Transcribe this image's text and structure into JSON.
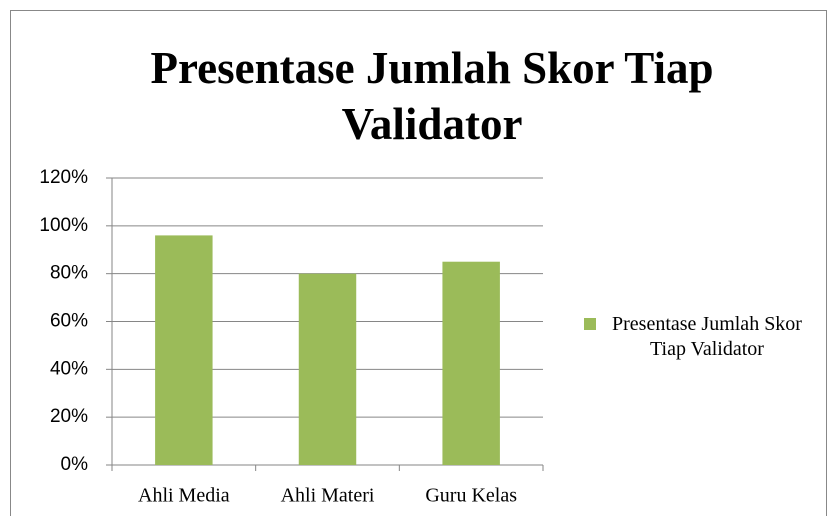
{
  "chart_data": {
    "type": "bar",
    "title": "Presentase Jumlah Skor Tiap Validator",
    "categories": [
      "Ahli Media",
      "Ahli Materi",
      "Guru Kelas"
    ],
    "series": [
      {
        "name": "Presentase Jumlah Skor Tiap Validator",
        "color": "#9bbb59",
        "values": [
          96,
          80,
          85
        ]
      }
    ],
    "ylim": [
      0,
      120
    ],
    "yticks": [
      {
        "value": 0,
        "label": "0%"
      },
      {
        "value": 20,
        "label": "20%"
      },
      {
        "value": 40,
        "label": "40%"
      },
      {
        "value": 60,
        "label": "60%"
      },
      {
        "value": 80,
        "label": "80%"
      },
      {
        "value": 100,
        "label": "100%"
      },
      {
        "value": 120,
        "label": "120%"
      }
    ],
    "grid": true,
    "legend": "right"
  }
}
